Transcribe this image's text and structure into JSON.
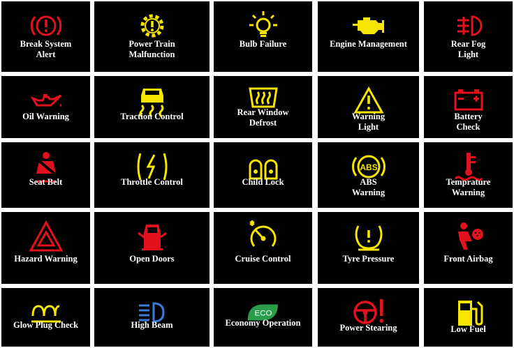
{
  "colors": {
    "red": "#e3101d",
    "yellow": "#f6e500",
    "green": "#2a9d4a",
    "blue": "#3a7bd5",
    "text": "#ffffff",
    "tile": "#000000"
  },
  "tiles": [
    {
      "label": "Break System\nAlert",
      "icon": "brake-system-alert-icon"
    },
    {
      "label": "Power Train\nMalfunction",
      "icon": "power-train-malfunction-icon"
    },
    {
      "label": "Bulb Failure",
      "icon": "bulb-failure-icon"
    },
    {
      "label": "Engine Management",
      "icon": "engine-management-icon"
    },
    {
      "label": "Rear Fog\nLight",
      "icon": "rear-fog-light-icon"
    },
    {
      "label": "Oil Warning",
      "icon": "oil-warning-icon"
    },
    {
      "label": "Traction Control",
      "icon": "traction-control-icon"
    },
    {
      "label": "Rear Window\nDefrost",
      "icon": "rear-window-defrost-icon"
    },
    {
      "label": "Warning\nLight",
      "icon": "warning-light-icon"
    },
    {
      "label": "Battery\nCheck",
      "icon": "battery-check-icon"
    },
    {
      "label": "Seat Belt",
      "icon": "seat-belt-icon"
    },
    {
      "label": "Throttle Control",
      "icon": "throttle-control-icon"
    },
    {
      "label": "Child Lock",
      "icon": "child-lock-icon"
    },
    {
      "label": "ABS\nWarning",
      "icon": "abs-warning-icon",
      "badge": "ABS"
    },
    {
      "label": "Temprature\nWarning",
      "icon": "temperature-warning-icon"
    },
    {
      "label": "Hazard Warning",
      "icon": "hazard-warning-icon"
    },
    {
      "label": "Open Doors",
      "icon": "open-doors-icon"
    },
    {
      "label": "Cruise Control",
      "icon": "cruise-control-icon"
    },
    {
      "label": "Tyre Pressure",
      "icon": "tyre-pressure-icon"
    },
    {
      "label": "Front Airbag",
      "icon": "front-airbag-icon"
    },
    {
      "label": "Glow Plug Check",
      "icon": "glow-plug-check-icon"
    },
    {
      "label": "High Beam",
      "icon": "high-beam-icon"
    },
    {
      "label": "Economy Operation",
      "icon": "economy-operation-icon",
      "badge": "ECO"
    },
    {
      "label": "Power Stearing",
      "icon": "power-steering-icon"
    },
    {
      "label": "Low Fuel",
      "icon": "low-fuel-icon"
    }
  ]
}
